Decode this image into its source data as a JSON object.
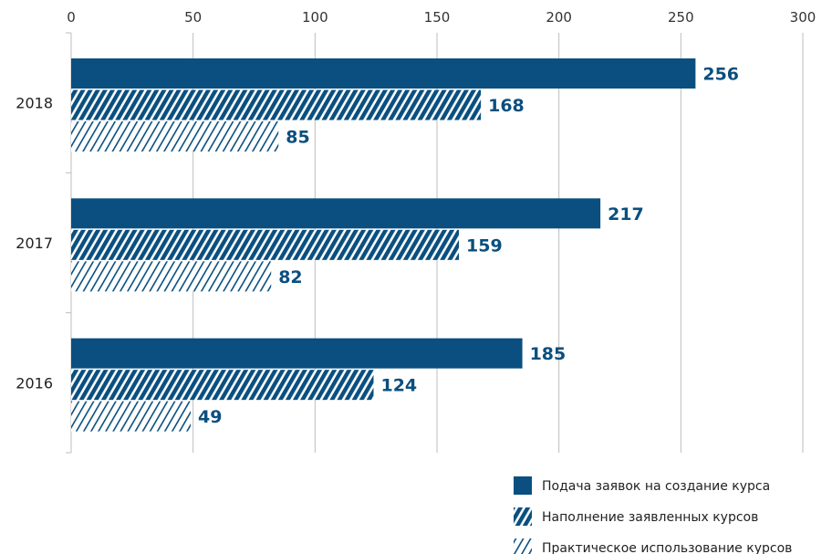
{
  "chart_data": {
    "type": "bar",
    "orientation": "horizontal",
    "categories": [
      "2018",
      "2017",
      "2016"
    ],
    "series": [
      {
        "name": "Подача заявок на создание курса",
        "values": [
          256,
          217,
          185
        ],
        "fill": "solid"
      },
      {
        "name": "Наполнение заявленных курсов",
        "values": [
          168,
          159,
          124
        ],
        "fill": "dense-hatch"
      },
      {
        "name": "Практическое использование курсов",
        "values": [
          85,
          82,
          49
        ],
        "fill": "light-hatch"
      }
    ],
    "x_ticks": [
      "0",
      "50",
      "100",
      "150",
      "200",
      "250",
      "300"
    ],
    "xlim": [
      0,
      300
    ],
    "xaxis_position": "top",
    "grid": "vertical",
    "legend_position": "bottom-right",
    "data_labels": true
  },
  "colors": {
    "bar": "#0a4f7f",
    "label": "#0a4f7f",
    "grid": "#bdbdbd"
  }
}
